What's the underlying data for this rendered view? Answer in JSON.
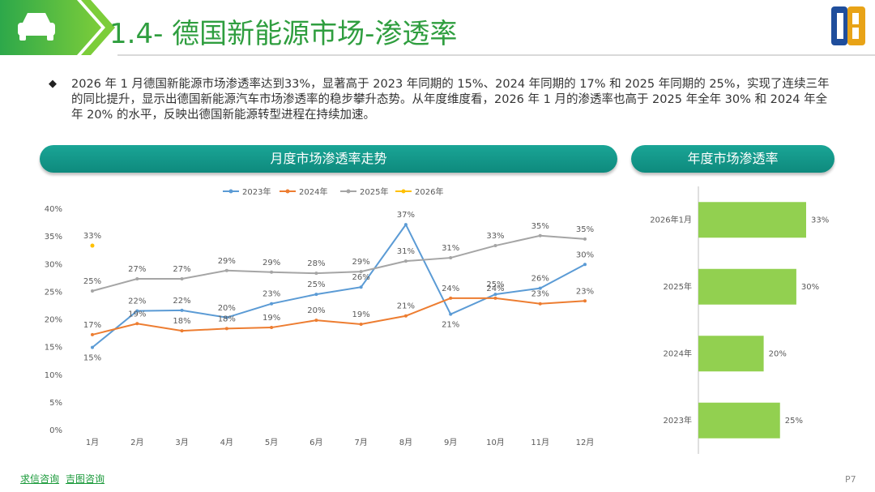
{
  "header": {
    "title": "1.4- 德国新能源市场-渗透率"
  },
  "summary": "2026 年 1 月德国新能源市场渗透率达到33%，显著高于 2023 年同期的 15%、2024 年同期的 17% 和 2025 年同期的 25%，实现了连续三年的同比提升，显示出德国新能源汽车市场渗透率的稳步攀升态势。从年度维度看，2026 年 1 月的渗透率也高于 2025 年全年 30% 和 2024 年全年 20% 的水平，反映出德国新能源转型进程在持续加速。",
  "chart_data": [
    {
      "type": "line",
      "title": "月度市场渗透率走势",
      "categories": [
        "1月",
        "2月",
        "3月",
        "4月",
        "5月",
        "6月",
        "7月",
        "8月",
        "9月",
        "10月",
        "11月",
        "12月"
      ],
      "series": [
        {
          "name": "2023年",
          "color": "#5b9bd5",
          "values": [
            15,
            21.6,
            21.7,
            20.4,
            22.9,
            24.6,
            25.9,
            37.2,
            21,
            24.6,
            25.7,
            30
          ],
          "value_labels": [
            "15%",
            "22%",
            "22%",
            "20%",
            "23%",
            "25%",
            "26%",
            "37%",
            "21%",
            "25%",
            "26%",
            "30%"
          ]
        },
        {
          "name": "2024年",
          "color": "#ed7d31",
          "values": [
            17.3,
            19.3,
            18,
            18.4,
            18.6,
            19.9,
            19.2,
            20.7,
            23.9,
            23.9,
            22.9,
            23.4
          ],
          "value_labels": [
            "17%",
            "19%",
            "18%",
            "18%",
            "19%",
            "20%",
            "19%",
            "21%",
            "24%",
            "24%",
            "23%",
            "23%"
          ]
        },
        {
          "name": "2025年",
          "color": "#a5a5a5",
          "values": [
            25.2,
            27.4,
            27.4,
            28.9,
            28.6,
            28.4,
            28.7,
            30.6,
            31.2,
            33.4,
            35.2,
            34.6
          ],
          "value_labels": [
            "25%",
            "27%",
            "27%",
            "29%",
            "29%",
            "28%",
            "29%",
            "31%",
            "31%",
            "33%",
            "35%",
            "35%"
          ]
        },
        {
          "name": "2026年",
          "color": "#ffc000",
          "values": [
            33.4,
            null,
            null,
            null,
            null,
            null,
            null,
            null,
            null,
            null,
            null,
            null
          ],
          "value_labels": [
            "33%",
            null,
            null,
            null,
            null,
            null,
            null,
            null,
            null,
            null,
            null,
            null
          ]
        }
      ],
      "ylim": [
        0,
        40
      ],
      "yticks": [
        {
          "value": 0,
          "label": "0%"
        },
        {
          "value": 5,
          "label": "5%"
        },
        {
          "value": 10,
          "label": "10%"
        },
        {
          "value": 15,
          "label": "15%"
        },
        {
          "value": 20,
          "label": "20%"
        },
        {
          "value": 25,
          "label": "25%"
        },
        {
          "value": 30,
          "label": "30%"
        },
        {
          "value": 35,
          "label": "35%"
        },
        {
          "value": 40,
          "label": "40%"
        }
      ],
      "grid": false,
      "legend": "top"
    },
    {
      "type": "hbar",
      "title": "年度市场渗透率",
      "color": "#92d050",
      "categories": [
        "2026年1月",
        "2025年",
        "2024年",
        "2023年"
      ],
      "values": [
        33,
        30,
        20,
        25
      ],
      "value_labels": [
        "33%",
        "30%",
        "20%",
        "25%"
      ]
    }
  ],
  "footer": {
    "links": [
      "求信咨询",
      "吉图咨询"
    ],
    "page": "P7"
  }
}
